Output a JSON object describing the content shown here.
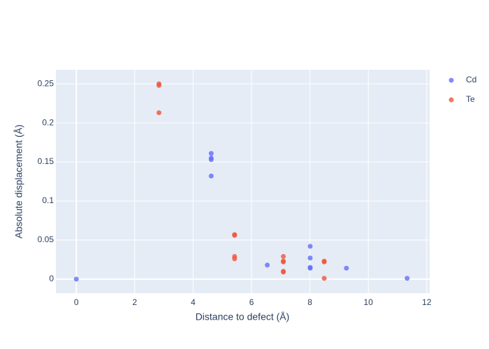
{
  "chart_data": {
    "type": "scatter",
    "x_label": "Distance to defect (Å)",
    "y_label": "Absolute displacement (Å)",
    "xlim": [
      -0.7,
      12.1
    ],
    "xticks": [
      0,
      2,
      4,
      6,
      8,
      10,
      12
    ],
    "ylim": [
      -0.018,
      0.268
    ],
    "yticks": [
      0,
      0.05,
      0.1,
      0.15,
      0.2,
      0.25
    ],
    "grid": true,
    "legend": "right",
    "series": [
      {
        "name": "Cd",
        "color": "#636efa",
        "x": [
          0,
          4.62,
          4.62,
          4.62,
          4.62,
          6.54,
          8.01,
          8.01,
          8.01,
          8.01,
          9.25,
          11.33
        ],
        "values": [
          0,
          0.161,
          0.155,
          0.153,
          0.132,
          0.018,
          0.042,
          0.027,
          0.015,
          0.014,
          0.014,
          0.001
        ]
      },
      {
        "name": "Te",
        "color": "#EF553B",
        "x": [
          2.83,
          2.83,
          2.83,
          5.42,
          5.42,
          5.42,
          5.42,
          7.09,
          7.09,
          7.09,
          7.09,
          7.09,
          8.49,
          8.49,
          8.49
        ],
        "values": [
          0.25,
          0.248,
          0.213,
          0.057,
          0.056,
          0.029,
          0.026,
          0.029,
          0.023,
          0.022,
          0.01,
          0.009,
          0.023,
          0.022,
          0.001
        ]
      }
    ]
  }
}
